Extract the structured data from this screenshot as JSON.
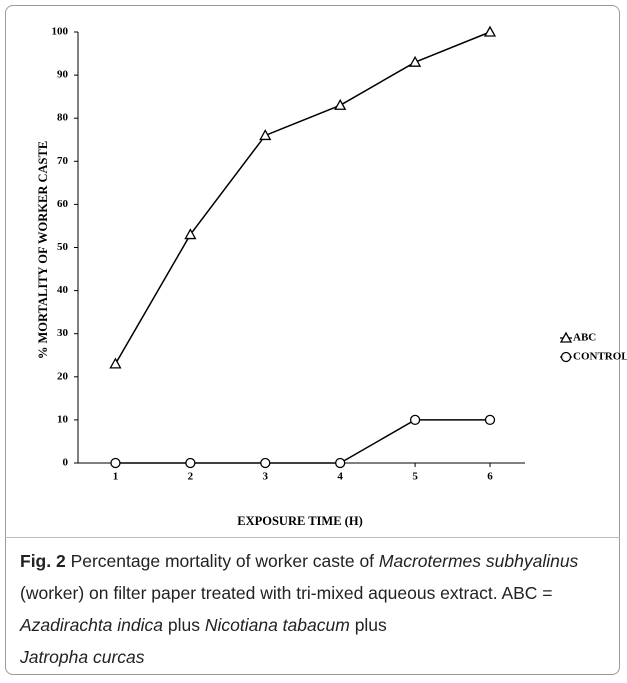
{
  "chart_data": {
    "type": "line",
    "y_label": "% MORTALITY OF WORKER CASTE",
    "x_label": "EXPOSURE TIME (H)",
    "categories": [
      "1",
      "2",
      "3",
      "4",
      "5",
      "6"
    ],
    "series": [
      {
        "name": "ABC",
        "color": "#000000",
        "marker": "triangle",
        "values": [
          23,
          53,
          76,
          83,
          93,
          100
        ]
      },
      {
        "name": "CONTROL",
        "color": "#000000",
        "marker": "circle",
        "values": [
          0,
          0,
          0,
          0,
          10,
          10
        ]
      }
    ],
    "ylim": [
      0,
      100
    ],
    "yticks": [
      0,
      10,
      20,
      30,
      40,
      50,
      60,
      70,
      80,
      90,
      100
    ],
    "legend": "right"
  },
  "caption": {
    "label": "Fig. 2",
    "text1": "Percentage mortality of worker caste of",
    "genus": "Macrotermes subhyalinus",
    "text2": "(worker) on filter paper treated with tri-mixed aqueous extract. ABC =",
    "species1": "Azadirachta indica",
    "plus1": "plus",
    "species2": "Nicotiana tabacum",
    "plus2": "plus",
    "species3": "Jatropha curcas"
  }
}
